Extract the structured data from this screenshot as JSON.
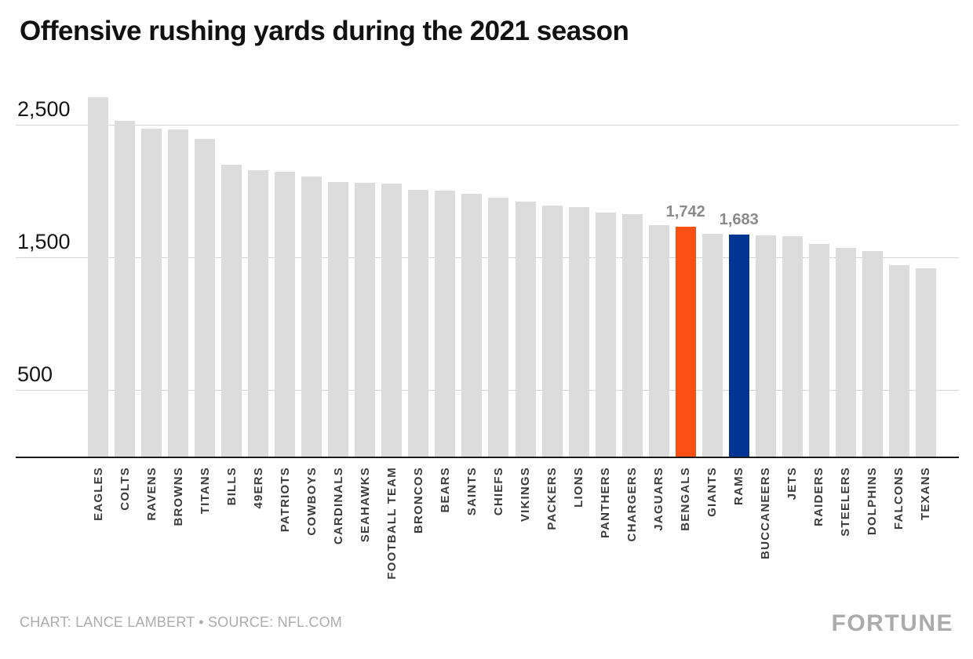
{
  "title": "Offensive rushing yards during the 2021 season",
  "footer": {
    "credit": "CHART: LANCE LAMBERT • SOURCE: NFL.COM",
    "brand": "FORTUNE"
  },
  "colors": {
    "bar_default": "#dcdcdc",
    "bar_bengals": "#fb4f14",
    "bar_rams": "#003594",
    "gridline": "#d4d4d4",
    "axis_line": "#1a1a1a",
    "value_label": "#8a8a8a",
    "team_label": "#3b3b3b",
    "footer_text": "#acacac"
  },
  "chart_data": {
    "type": "bar",
    "title": "Offensive rushing yards during the 2021 season",
    "xlabel": "",
    "ylabel": "",
    "ylim": [
      0,
      2800
    ],
    "grid": true,
    "legend": "none",
    "yticks": [
      {
        "value": 500,
        "label": "500"
      },
      {
        "value": 1500,
        "label": "1,500"
      },
      {
        "value": 2500,
        "label": "2,500"
      }
    ],
    "categories": [
      "EAGLES",
      "COLTS",
      "RAVENS",
      "BROWNS",
      "TITANS",
      "BILLS",
      "49ERS",
      "PATRIOTS",
      "COWBOYS",
      "CARDINALS",
      "SEAHAWKS",
      "FOOTBALL TEAM",
      "BRONCOS",
      "BEARS",
      "SAINTS",
      "CHIEFS",
      "VIKINGS",
      "PACKERS",
      "LIONS",
      "PANTHERS",
      "CHARGERS",
      "JAGUARS",
      "BENGALS",
      "GIANTS",
      "RAMS",
      "BUCCANEERS",
      "JETS",
      "RAIDERS",
      "STEELERS",
      "DOLPHINS",
      "FALCONS",
      "TEXANS"
    ],
    "values": [
      2715,
      2540,
      2479,
      2471,
      2404,
      2209,
      2166,
      2151,
      2119,
      2076,
      2072,
      2063,
      2020,
      2014,
      1991,
      1957,
      1927,
      1898,
      1888,
      1844,
      1832,
      1752,
      1742,
      1688,
      1683,
      1674,
      1666,
      1610,
      1578,
      1554,
      1451,
      1424
    ],
    "highlights": [
      {
        "team": "BENGALS",
        "value_label": "1,742",
        "color": "#fb4f14"
      },
      {
        "team": "RAMS",
        "value_label": "1,683",
        "color": "#003594"
      }
    ]
  }
}
